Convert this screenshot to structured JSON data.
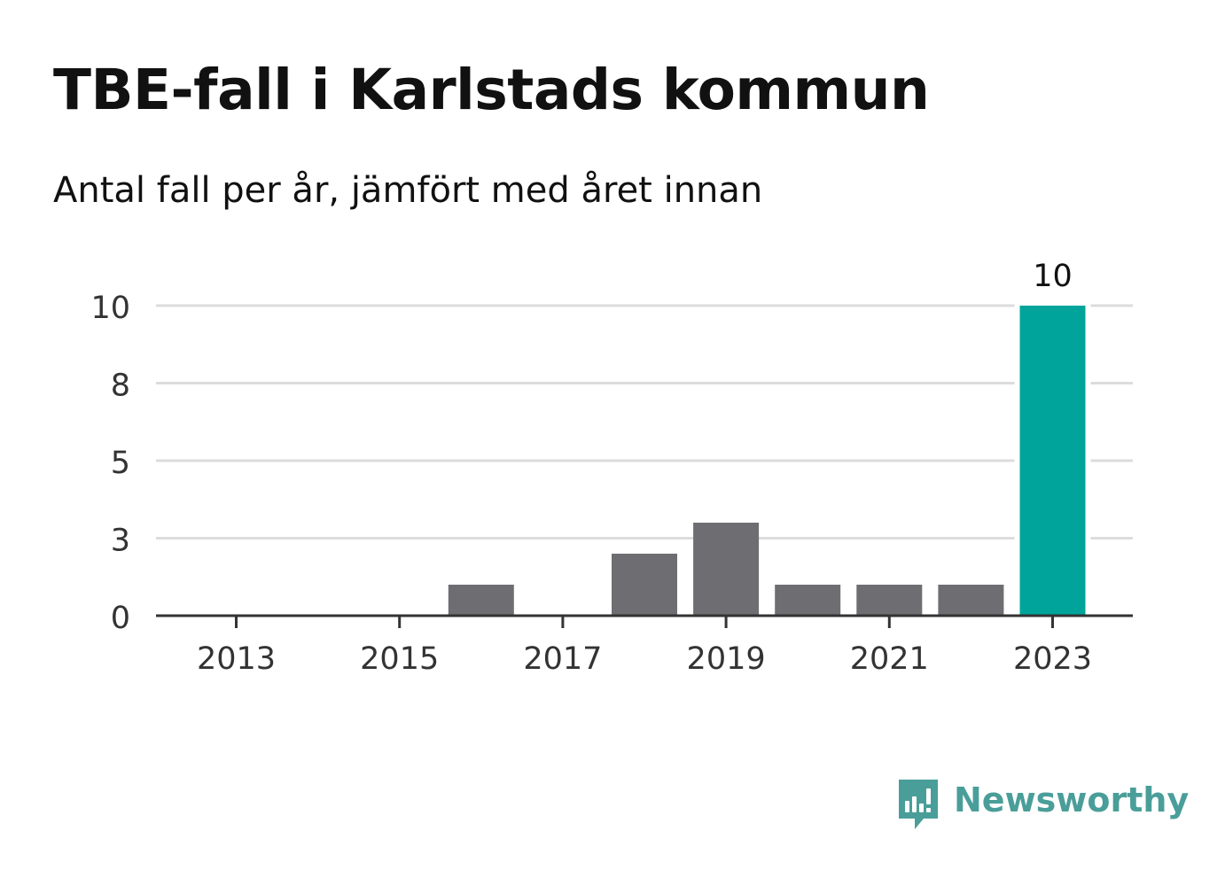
{
  "title": "TBE-fall i Karlstads kommun",
  "subtitle": "Antal fall per år, jämfört med året innan",
  "brand": {
    "name": "Newsworthy",
    "icon": "newsworthy-logo-icon",
    "color": "#4a9e99"
  },
  "colors": {
    "bar_default": "#6e6d72",
    "bar_highlight": "#00a49a",
    "grid": "#dcdcdc",
    "axis": "#333333",
    "text": "#111111",
    "tick_text": "#333333"
  },
  "chart_data": {
    "type": "bar",
    "title": "TBE-fall i Karlstads kommun",
    "subtitle": "Antal fall per år, jämfört med året innan",
    "xlabel": "",
    "ylabel": "",
    "categories": [
      2013,
      2014,
      2015,
      2016,
      2017,
      2018,
      2019,
      2020,
      2021,
      2022,
      2023
    ],
    "values": [
      0,
      0,
      0,
      1,
      0,
      2,
      3,
      1,
      1,
      1,
      10
    ],
    "highlight": 2023,
    "highlight_label": "10",
    "x_tick_labels": [
      "2013",
      "2015",
      "2017",
      "2019",
      "2021",
      "2023"
    ],
    "y_ticks": [
      0,
      2.5,
      5,
      7.5,
      10
    ],
    "y_tick_labels": [
      "0",
      "3",
      "5",
      "8",
      "10"
    ],
    "ylim": [
      0,
      10
    ],
    "grid": true,
    "legend": "none"
  }
}
